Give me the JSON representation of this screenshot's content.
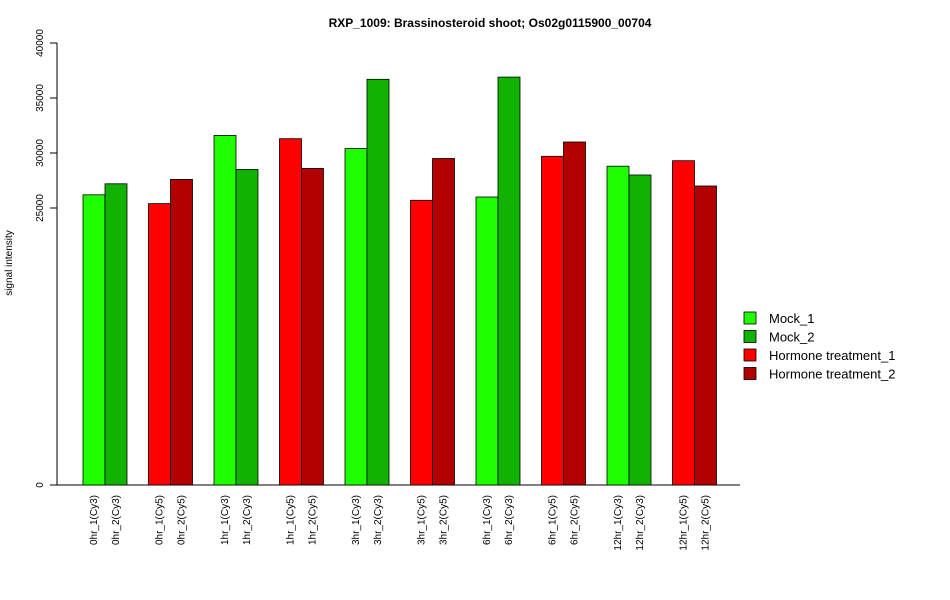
{
  "chart_data": {
    "type": "bar",
    "title": "RXP_1009: Brassinosteroid shoot; Os02g0115900_00704",
    "xlabel": "",
    "ylabel": "signal intensity",
    "ylim": [
      0,
      40000
    ],
    "yticks": [
      "0",
      "25000",
      "30000",
      "35000",
      "40000"
    ],
    "legend_position": "right",
    "series": [
      {
        "name": "Mock_1",
        "color": "#1fff00"
      },
      {
        "name": "Mock_2",
        "color": "#11b300"
      },
      {
        "name": "Hormone treatment_1",
        "color": "#ff0000"
      },
      {
        "name": "Hormone treatment_2",
        "color": "#b30000"
      }
    ],
    "groups": [
      {
        "bars": [
          {
            "label": "0hr_1(Cy3)",
            "value": 26200,
            "series": 0
          },
          {
            "label": "0hr_2(Cy3)",
            "value": 27200,
            "series": 1
          }
        ]
      },
      {
        "bars": [
          {
            "label": "0hr_1(Cy5)",
            "value": 25400,
            "series": 2
          },
          {
            "label": "0hr_2(Cy5)",
            "value": 27600,
            "series": 3
          }
        ]
      },
      {
        "bars": [
          {
            "label": "1hr_1(Cy3)",
            "value": 31600,
            "series": 0
          },
          {
            "label": "1hr_2(Cy3)",
            "value": 28500,
            "series": 1
          }
        ]
      },
      {
        "bars": [
          {
            "label": "1hr_1(Cy5)",
            "value": 31300,
            "series": 2
          },
          {
            "label": "1hr_2(Cy5)",
            "value": 28600,
            "series": 3
          }
        ]
      },
      {
        "bars": [
          {
            "label": "3hr_1(Cy3)",
            "value": 30400,
            "series": 0
          },
          {
            "label": "3hr_2(Cy3)",
            "value": 36700,
            "series": 1
          }
        ]
      },
      {
        "bars": [
          {
            "label": "3hr_1(Cy5)",
            "value": 25700,
            "series": 2
          },
          {
            "label": "3hr_2(Cy5)",
            "value": 29500,
            "series": 3
          }
        ]
      },
      {
        "bars": [
          {
            "label": "6hr_1(Cy3)",
            "value": 26000,
            "series": 0
          },
          {
            "label": "6hr_2(Cy3)",
            "value": 36900,
            "series": 1
          }
        ]
      },
      {
        "bars": [
          {
            "label": "6hr_1(Cy5)",
            "value": 29700,
            "series": 2
          },
          {
            "label": "6hr_2(Cy5)",
            "value": 31000,
            "series": 3
          }
        ]
      },
      {
        "bars": [
          {
            "label": "12hr_1(Cy3)",
            "value": 28800,
            "series": 0
          },
          {
            "label": "12hr_2(Cy3)",
            "value": 28000,
            "series": 1
          }
        ]
      },
      {
        "bars": [
          {
            "label": "12hr_1(Cy5)",
            "value": 29300,
            "series": 2
          },
          {
            "label": "12hr_2(Cy5)",
            "value": 27000,
            "series": 3
          }
        ]
      }
    ]
  }
}
